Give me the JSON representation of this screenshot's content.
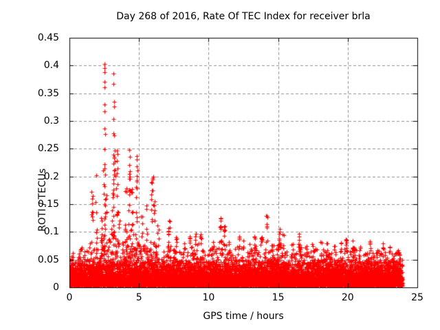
{
  "window": {
    "background": "#ffffff"
  },
  "chart_data": {
    "type": "scatter",
    "title": "Day 268 of 2016, Rate Of TEC Index for receiver brla",
    "xlabel": "GPS time / hours",
    "ylabel": "ROTI / TECUs",
    "xlim": [
      0,
      25
    ],
    "ylim": [
      0,
      0.45
    ],
    "xtick_values": [
      0,
      5,
      10,
      15,
      20,
      25
    ],
    "xtick_labels": [
      "0",
      "5",
      "10",
      "15",
      "20",
      "25"
    ],
    "ytick_values": [
      0,
      0.05,
      0.1,
      0.15,
      0.2,
      0.25,
      0.3,
      0.35,
      0.4,
      0.45
    ],
    "ytick_labels": [
      "0",
      "0.05",
      "0.1",
      "0.15",
      "0.2",
      "0.25",
      "0.3",
      "0.35",
      "0.4",
      "0.45"
    ],
    "grid": true,
    "grid_style": "dashed",
    "grid_color": "#909090",
    "axis_color": "#000000",
    "legend": "none",
    "marker": "plus",
    "marker_color": "#ff0000",
    "data_time_range_hours": [
      0,
      23.93
    ],
    "max_value_tecu": 0.405,
    "peak_points": [
      [
        1.93,
        0.202
      ],
      [
        2.42,
        0.211
      ],
      [
        2.52,
        0.403
      ],
      [
        2.53,
        0.395
      ],
      [
        2.54,
        0.388
      ],
      [
        2.5,
        0.371
      ],
      [
        2.53,
        0.361
      ],
      [
        2.51,
        0.33
      ],
      [
        2.53,
        0.317
      ],
      [
        2.5,
        0.286
      ],
      [
        2.56,
        0.276
      ],
      [
        2.52,
        0.249
      ],
      [
        2.54,
        0.222
      ],
      [
        2.51,
        0.214
      ],
      [
        2.55,
        0.203
      ],
      [
        3.17,
        0.385
      ],
      [
        3.17,
        0.367
      ],
      [
        3.19,
        0.335
      ],
      [
        3.2,
        0.326
      ],
      [
        3.18,
        0.304
      ],
      [
        3.15,
        0.278
      ],
      [
        3.19,
        0.274
      ],
      [
        3.24,
        0.247
      ],
      [
        3.17,
        0.239
      ],
      [
        3.21,
        0.236
      ],
      [
        3.23,
        0.233
      ],
      [
        3.25,
        0.227
      ],
      [
        3.18,
        0.223
      ],
      [
        3.27,
        0.212
      ],
      [
        3.19,
        0.211
      ],
      [
        3.22,
        0.203
      ],
      [
        3.29,
        0.201
      ],
      [
        3.4,
        0.247
      ],
      [
        3.44,
        0.24
      ],
      [
        3.41,
        0.228
      ],
      [
        3.45,
        0.215
      ],
      [
        3.42,
        0.206
      ],
      [
        4.3,
        0.248
      ],
      [
        4.33,
        0.236
      ],
      [
        4.28,
        0.221
      ],
      [
        4.34,
        0.21
      ],
      [
        4.31,
        0.204
      ],
      [
        4.35,
        0.2
      ],
      [
        4.82,
        0.237
      ],
      [
        4.86,
        0.231
      ],
      [
        4.83,
        0.218
      ],
      [
        4.88,
        0.211
      ],
      [
        4.84,
        0.201
      ],
      [
        6.03,
        0.2
      ]
    ],
    "spike_columns": [
      [
        1.62,
        0.178,
        10
      ],
      [
        1.93,
        0.155,
        7
      ],
      [
        2.3,
        0.135,
        7
      ],
      [
        2.52,
        0.198,
        12
      ],
      [
        2.62,
        0.168,
        7
      ],
      [
        3.05,
        0.155,
        7
      ],
      [
        3.17,
        0.198,
        12
      ],
      [
        3.42,
        0.19,
        8
      ],
      [
        3.55,
        0.155,
        6
      ],
      [
        4.05,
        0.19,
        8
      ],
      [
        4.32,
        0.198,
        9
      ],
      [
        4.48,
        0.185,
        7
      ],
      [
        4.85,
        0.198,
        9
      ],
      [
        5.2,
        0.13,
        6
      ],
      [
        5.55,
        0.148,
        6
      ],
      [
        5.93,
        0.198,
        11
      ],
      [
        6.1,
        0.158,
        7
      ],
      [
        6.35,
        0.12,
        5
      ],
      [
        7.15,
        0.122,
        9
      ],
      [
        7.7,
        0.095,
        5
      ],
      [
        8.25,
        0.085,
        4
      ],
      [
        8.7,
        0.092,
        6
      ],
      [
        9.1,
        0.1,
        5
      ],
      [
        9.45,
        0.1,
        6
      ],
      [
        10.3,
        0.088,
        5
      ],
      [
        10.9,
        0.126,
        9
      ],
      [
        11.15,
        0.112,
        6
      ],
      [
        11.5,
        0.09,
        4
      ],
      [
        12.2,
        0.095,
        5
      ],
      [
        12.45,
        0.088,
        4
      ],
      [
        13.0,
        0.088,
        4
      ],
      [
        13.35,
        0.092,
        5
      ],
      [
        13.8,
        0.1,
        5
      ],
      [
        14.2,
        0.13,
        8
      ],
      [
        14.6,
        0.09,
        4
      ],
      [
        15.05,
        0.113,
        7
      ],
      [
        15.35,
        0.095,
        4
      ],
      [
        16.0,
        0.085,
        4
      ],
      [
        16.5,
        0.098,
        6
      ],
      [
        17.0,
        0.08,
        4
      ],
      [
        17.5,
        0.085,
        4
      ],
      [
        18.1,
        0.082,
        4
      ],
      [
        18.5,
        0.08,
        4
      ],
      [
        19.0,
        0.078,
        4
      ],
      [
        19.5,
        0.085,
        4
      ],
      [
        19.9,
        0.097,
        6
      ],
      [
        20.4,
        0.092,
        5
      ],
      [
        20.9,
        0.08,
        4
      ],
      [
        21.6,
        0.088,
        5
      ],
      [
        22.1,
        0.078,
        4
      ],
      [
        22.5,
        0.08,
        4
      ],
      [
        23.0,
        0.075,
        4
      ],
      [
        23.6,
        0.068,
        4
      ]
    ],
    "band_envelope_control_points": [
      [
        0,
        0.055
      ],
      [
        0.3,
        0.065
      ],
      [
        0.6,
        0.055
      ],
      [
        0.9,
        0.08
      ],
      [
        1.1,
        0.07
      ],
      [
        1.4,
        0.075
      ],
      [
        1.6,
        0.09
      ],
      [
        1.9,
        0.065
      ],
      [
        2.2,
        0.08
      ],
      [
        2.45,
        0.105
      ],
      [
        2.7,
        0.085
      ],
      [
        3.0,
        0.09
      ],
      [
        3.3,
        0.1
      ],
      [
        3.6,
        0.08
      ],
      [
        3.9,
        0.085
      ],
      [
        4.2,
        0.1
      ],
      [
        4.5,
        0.105
      ],
      [
        4.8,
        0.095
      ],
      [
        5.1,
        0.07
      ],
      [
        5.4,
        0.08
      ],
      [
        5.7,
        0.09
      ],
      [
        6.0,
        0.095
      ],
      [
        6.3,
        0.07
      ],
      [
        6.6,
        0.065
      ],
      [
        6.9,
        0.075
      ],
      [
        7.2,
        0.085
      ],
      [
        7.5,
        0.07
      ],
      [
        7.8,
        0.072
      ],
      [
        8.1,
        0.062
      ],
      [
        8.4,
        0.068
      ],
      [
        8.7,
        0.078
      ],
      [
        9.0,
        0.072
      ],
      [
        9.3,
        0.082
      ],
      [
        9.6,
        0.068
      ],
      [
        9.9,
        0.063
      ],
      [
        10.2,
        0.072
      ],
      [
        10.5,
        0.068
      ],
      [
        10.8,
        0.09
      ],
      [
        11.1,
        0.092
      ],
      [
        11.4,
        0.072
      ],
      [
        11.7,
        0.063
      ],
      [
        12.0,
        0.075
      ],
      [
        12.3,
        0.08
      ],
      [
        12.6,
        0.068
      ],
      [
        12.9,
        0.062
      ],
      [
        13.2,
        0.072
      ],
      [
        13.5,
        0.078
      ],
      [
        13.8,
        0.085
      ],
      [
        14.1,
        0.088
      ],
      [
        14.4,
        0.072
      ],
      [
        14.7,
        0.078
      ],
      [
        15.0,
        0.088
      ],
      [
        15.3,
        0.075
      ],
      [
        15.6,
        0.067
      ],
      [
        15.9,
        0.062
      ],
      [
        16.2,
        0.072
      ],
      [
        16.5,
        0.08
      ],
      [
        16.8,
        0.067
      ],
      [
        17.1,
        0.062
      ],
      [
        17.4,
        0.066
      ],
      [
        17.7,
        0.07
      ],
      [
        18.0,
        0.066
      ],
      [
        18.3,
        0.07
      ],
      [
        18.6,
        0.062
      ],
      [
        18.9,
        0.066
      ],
      [
        19.2,
        0.062
      ],
      [
        19.5,
        0.07
      ],
      [
        19.8,
        0.075
      ],
      [
        20.1,
        0.07
      ],
      [
        20.4,
        0.074
      ],
      [
        20.7,
        0.066
      ],
      [
        21.0,
        0.062
      ],
      [
        21.3,
        0.066
      ],
      [
        21.6,
        0.074
      ],
      [
        21.9,
        0.062
      ],
      [
        22.2,
        0.066
      ],
      [
        22.5,
        0.07
      ],
      [
        22.8,
        0.062
      ],
      [
        23.1,
        0.066
      ],
      [
        23.4,
        0.07
      ],
      [
        23.7,
        0.065
      ],
      [
        23.93,
        0.055
      ]
    ],
    "point_generator": {
      "seed": 20160268,
      "n_bottom_band_points": 8000,
      "bottom_band_max": 0.048,
      "bottom_band_mean": 0.013,
      "n_texture_points": 4000
    }
  }
}
